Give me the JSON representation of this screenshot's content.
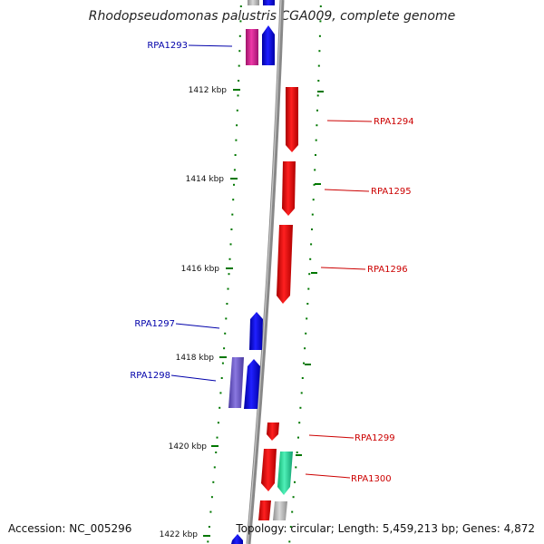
{
  "title": "Rhodopseudomonas palustris CGA009, complete genome",
  "accession": "Accession: NC_005296",
  "topology": "Topology: circular; Length: 5,459,213 bp; Genes: 4,872",
  "kbp_ticks": [
    "1412 kbp",
    "1414 kbp",
    "1416 kbp",
    "1418 kbp",
    "1420 kbp",
    "1422 kbp"
  ],
  "gene_labels": {
    "rpa1293": "RPA1293",
    "rpa1294": "RPA1294",
    "rpa1295": "RPA1295",
    "rpa1296": "RPA1296",
    "rpa1297": "RPA1297",
    "rpa1298": "RPA1298",
    "rpa1299": "RPA1299",
    "rpa1300": "RPA1300"
  },
  "colors": {
    "forward_label": "#0000aa",
    "reverse_label": "#cc0000",
    "forward_gene": "#0000ff",
    "reverse_gene": "#ff0000",
    "tick": "#007700",
    "backbone": "#888888"
  }
}
